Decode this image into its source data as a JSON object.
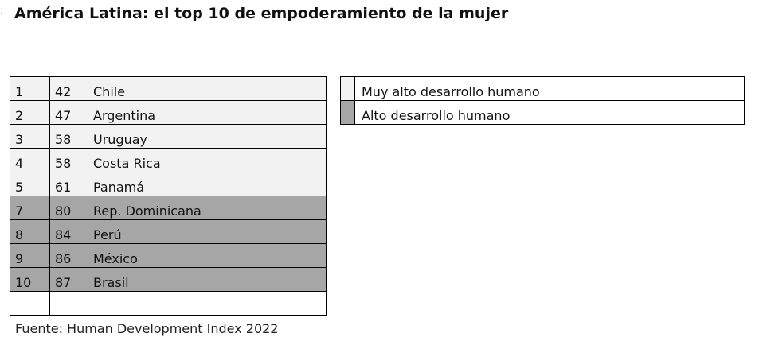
{
  "title": "América Latina: el top 10 de empoderamiento de la mujer",
  "rows": [
    {
      "rank": "1",
      "index": "42",
      "country": "Chile",
      "group": "muy_alto"
    },
    {
      "rank": "2",
      "index": "47",
      "country": "Argentina",
      "group": "muy_alto"
    },
    {
      "rank": "3",
      "index": "58",
      "country": "Uruguay",
      "group": "muy_alto"
    },
    {
      "rank": "4",
      "index": "58",
      "country": "Costa Rica",
      "group": "muy_alto"
    },
    {
      "rank": "5",
      "index": "61",
      "country": "Panamá",
      "group": "muy_alto"
    },
    {
      "rank": "7",
      "index": "80",
      "country": "Rep. Dominicana",
      "group": "alto"
    },
    {
      "rank": "8",
      "index": "84",
      "country": "Perú",
      "group": "alto"
    },
    {
      "rank": "9",
      "index": "86",
      "country": "México",
      "group": "alto"
    },
    {
      "rank": "10",
      "index": "87",
      "country": "Brasil",
      "group": "alto"
    }
  ],
  "legend": [
    {
      "label": "Muy alto desarrollo humano",
      "color": "#f2f2f2"
    },
    {
      "label": "Alto desarrollo humano",
      "color": "#a6a6a6"
    }
  ],
  "source": "Fuente: Human Development Index 2022"
}
